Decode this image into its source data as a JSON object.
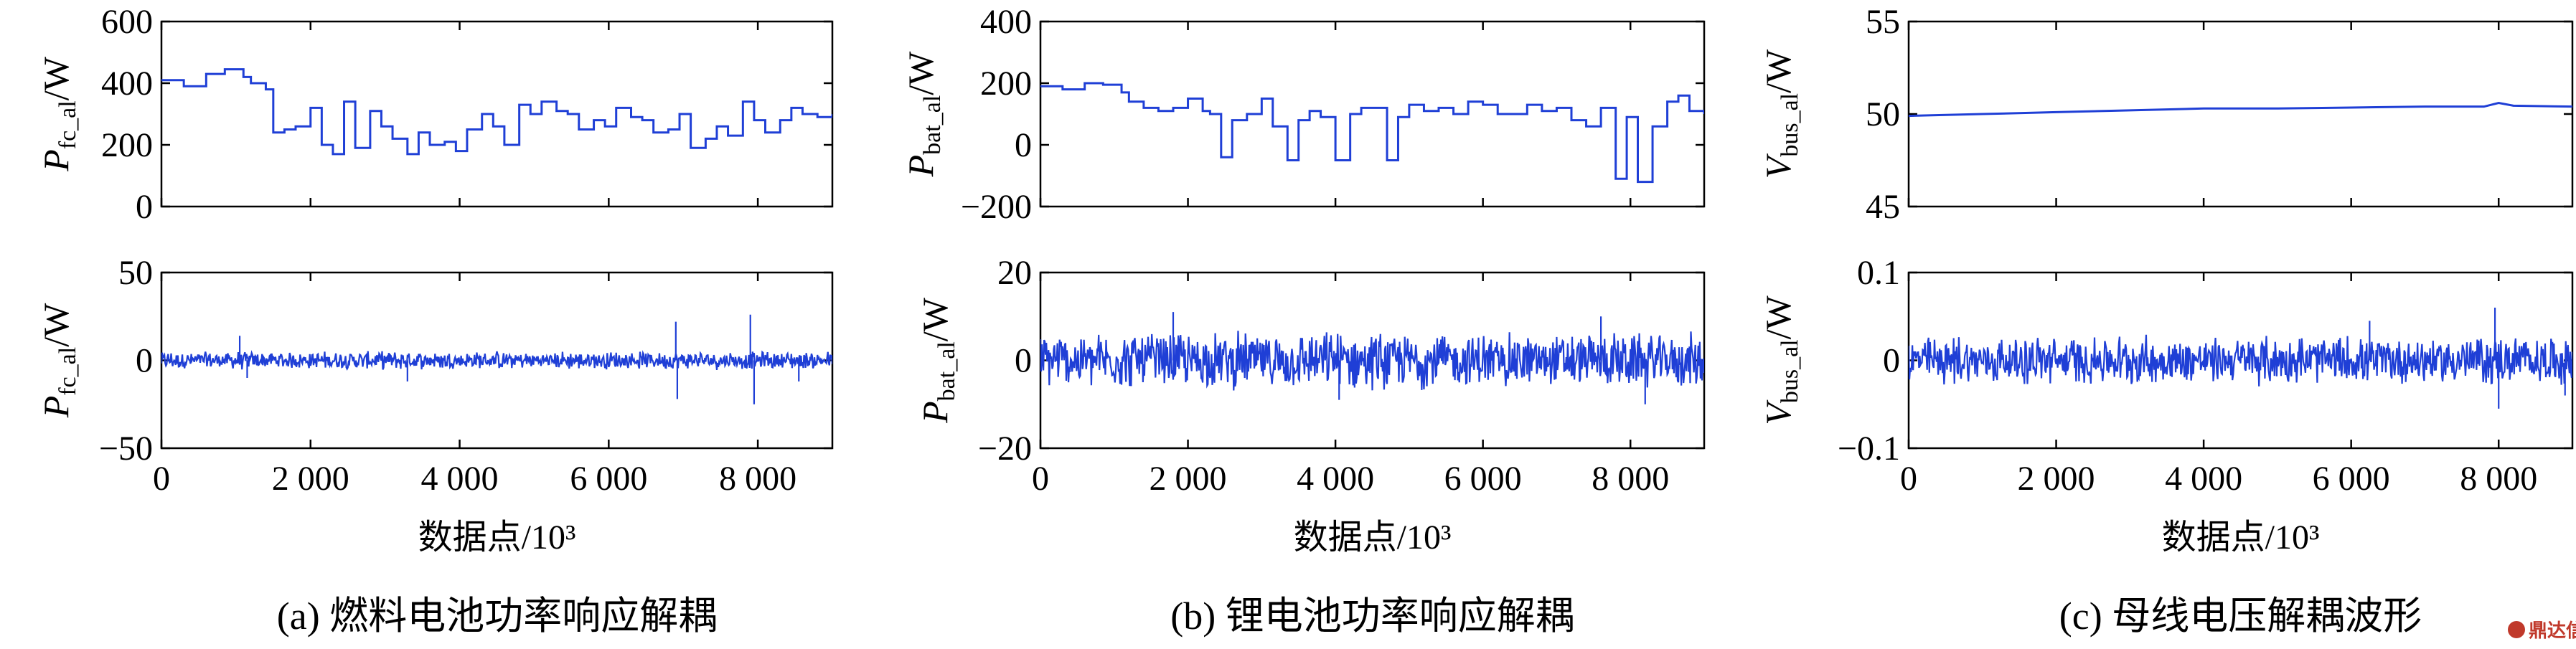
{
  "watermark": "鼎达信",
  "chart_data": [
    {
      "id": "a1",
      "panel": "a",
      "row": "top",
      "type": "line",
      "ylabel": {
        "main": "P",
        "sub": "fc_al",
        "unit": "/W"
      },
      "ylim": [
        0,
        600
      ],
      "yticks": [
        0,
        200,
        400,
        600
      ],
      "ytick_labels": [
        "0",
        "200",
        "400",
        "600"
      ],
      "xlim": [
        0,
        9000
      ],
      "xticks": [
        0,
        2000,
        4000,
        6000,
        8000
      ],
      "xtick_labels": [],
      "color": "#1f3fd6",
      "series": [
        {
          "x": [
            0,
            300,
            600,
            850,
            1100,
            1200,
            1400,
            1500,
            1650,
            1800,
            2000,
            2150,
            2300,
            2450,
            2600,
            2800,
            2950,
            3100,
            3300,
            3450,
            3600,
            3800,
            3950,
            4100,
            4300,
            4450,
            4600,
            4800,
            4950,
            5100,
            5300,
            5450,
            5600,
            5800,
            5950,
            6100,
            6300,
            6450,
            6600,
            6800,
            6950,
            7100,
            7300,
            7450,
            7600,
            7800,
            7950,
            8100,
            8300,
            8450,
            8600,
            8800,
            9000
          ],
          "y": [
            410,
            390,
            430,
            445,
            420,
            400,
            380,
            240,
            250,
            260,
            320,
            200,
            170,
            340,
            190,
            310,
            260,
            220,
            170,
            240,
            200,
            210,
            180,
            250,
            300,
            260,
            200,
            330,
            300,
            340,
            310,
            300,
            250,
            280,
            260,
            320,
            290,
            280,
            240,
            250,
            300,
            190,
            220,
            260,
            230,
            340,
            280,
            240,
            280,
            320,
            300,
            290,
            300
          ]
        }
      ]
    },
    {
      "id": "a2",
      "panel": "a",
      "row": "bottom",
      "type": "line",
      "ylabel": {
        "main": "P",
        "sub": "fc_al",
        "unit": "/W"
      },
      "ylim": [
        -50,
        50
      ],
      "yticks": [
        -50,
        0,
        50
      ],
      "ytick_labels": [
        "−50",
        "0",
        "50"
      ],
      "xlim": [
        0,
        9000
      ],
      "xticks": [
        0,
        2000,
        4000,
        6000,
        8000
      ],
      "xtick_labels": [
        "0",
        "2 000",
        "4 000",
        "6 000",
        "8 000"
      ],
      "xlabel": "数据点/10³",
      "caption": "(a) 燃料电池功率响应解耦",
      "noise": {
        "amp": 4,
        "spikes": [
          [
            1050,
            14
          ],
          [
            1150,
            -10
          ],
          [
            3300,
            -12
          ],
          [
            6900,
            22
          ],
          [
            6920,
            -22
          ],
          [
            7900,
            26
          ],
          [
            7950,
            -25
          ],
          [
            8550,
            -12
          ]
        ]
      },
      "color": "#1f3fd6"
    },
    {
      "id": "b1",
      "panel": "b",
      "row": "top",
      "type": "line",
      "ylabel": {
        "main": "P",
        "sub": "bat_al",
        "unit": "/W"
      },
      "ylim": [
        -200,
        400
      ],
      "yticks": [
        -200,
        0,
        200,
        400
      ],
      "ytick_labels": [
        "−200",
        "0",
        "200",
        "400"
      ],
      "xlim": [
        0,
        9000
      ],
      "xticks": [
        0,
        2000,
        4000,
        6000,
        8000
      ],
      "xtick_labels": [],
      "color": "#1f3fd6",
      "series": [
        {
          "x": [
            0,
            300,
            600,
            850,
            1100,
            1200,
            1400,
            1600,
            1800,
            2000,
            2200,
            2300,
            2450,
            2600,
            2800,
            3000,
            3150,
            3350,
            3500,
            3650,
            3800,
            4000,
            4200,
            4350,
            4500,
            4700,
            4850,
            5000,
            5200,
            5400,
            5600,
            5800,
            6000,
            6200,
            6400,
            6600,
            6800,
            7000,
            7200,
            7400,
            7600,
            7800,
            7950,
            8100,
            8300,
            8500,
            8650,
            8800,
            9000
          ],
          "y": [
            190,
            180,
            200,
            195,
            170,
            140,
            120,
            110,
            120,
            150,
            110,
            100,
            -40,
            80,
            100,
            150,
            60,
            -50,
            80,
            110,
            90,
            -50,
            100,
            120,
            120,
            -50,
            90,
            130,
            110,
            120,
            100,
            140,
            130,
            100,
            100,
            130,
            110,
            120,
            80,
            60,
            120,
            -110,
            90,
            -120,
            60,
            140,
            160,
            110,
            100
          ]
        }
      ]
    },
    {
      "id": "b2",
      "panel": "b",
      "row": "bottom",
      "type": "line",
      "ylabel": {
        "main": "P",
        "sub": "bat_al",
        "unit": "/W"
      },
      "ylim": [
        -20,
        20
      ],
      "yticks": [
        -20,
        0,
        20
      ],
      "ytick_labels": [
        "−20",
        "0",
        "20"
      ],
      "xlim": [
        0,
        9000
      ],
      "xticks": [
        0,
        2000,
        4000,
        6000,
        8000
      ],
      "xtick_labels": [
        "0",
        "2 000",
        "4 000",
        "6 000",
        "8 000"
      ],
      "xlabel": "数据点/10³",
      "caption": "(b) 锂电池功率响应解耦",
      "noise": {
        "amp": 5,
        "spikes": [
          [
            1800,
            11
          ],
          [
            4050,
            -9
          ],
          [
            7600,
            10
          ],
          [
            8200,
            -10
          ]
        ]
      },
      "color": "#1f3fd6"
    },
    {
      "id": "c1",
      "panel": "c",
      "row": "top",
      "type": "line",
      "ylabel": {
        "main": "V",
        "sub": "bus_al",
        "unit": "/W"
      },
      "ylim": [
        45,
        55
      ],
      "yticks": [
        45,
        50,
        55
      ],
      "ytick_labels": [
        "45",
        "50",
        "55"
      ],
      "xlim": [
        0,
        9000
      ],
      "xticks": [
        0,
        2000,
        4000,
        6000,
        8000
      ],
      "xtick_labels": [],
      "color": "#1f3fd6",
      "series": [
        {
          "x": [
            0,
            1000,
            2000,
            3000,
            4000,
            5000,
            6000,
            7000,
            7800,
            8000,
            8200,
            9000
          ],
          "y": [
            49.9,
            50.0,
            50.1,
            50.2,
            50.3,
            50.3,
            50.35,
            50.4,
            50.4,
            50.6,
            50.45,
            50.4
          ]
        }
      ]
    },
    {
      "id": "c2",
      "panel": "c",
      "row": "bottom",
      "type": "line",
      "ylabel": {
        "main": "V",
        "sub": "bus_al",
        "unit": "/W"
      },
      "ylim": [
        -0.1,
        0.1
      ],
      "yticks": [
        -0.1,
        0,
        0.1
      ],
      "ytick_labels": [
        "−0.1",
        "0",
        "0.1"
      ],
      "xlim": [
        0,
        9000
      ],
      "xticks": [
        0,
        2000,
        4000,
        6000,
        8000
      ],
      "xtick_labels": [
        "0",
        "2 000",
        "4 000",
        "6 000",
        "8 000"
      ],
      "xlabel": "数据点/10³",
      "caption": "(c) 母线电压解耦波形",
      "noise": {
        "amp": 0.022,
        "spikes": [
          [
            7950,
            0.06
          ],
          [
            8000,
            -0.055
          ],
          [
            6250,
            0.045
          ],
          [
            8900,
            -0.04
          ]
        ]
      },
      "color": "#1f3fd6"
    }
  ]
}
